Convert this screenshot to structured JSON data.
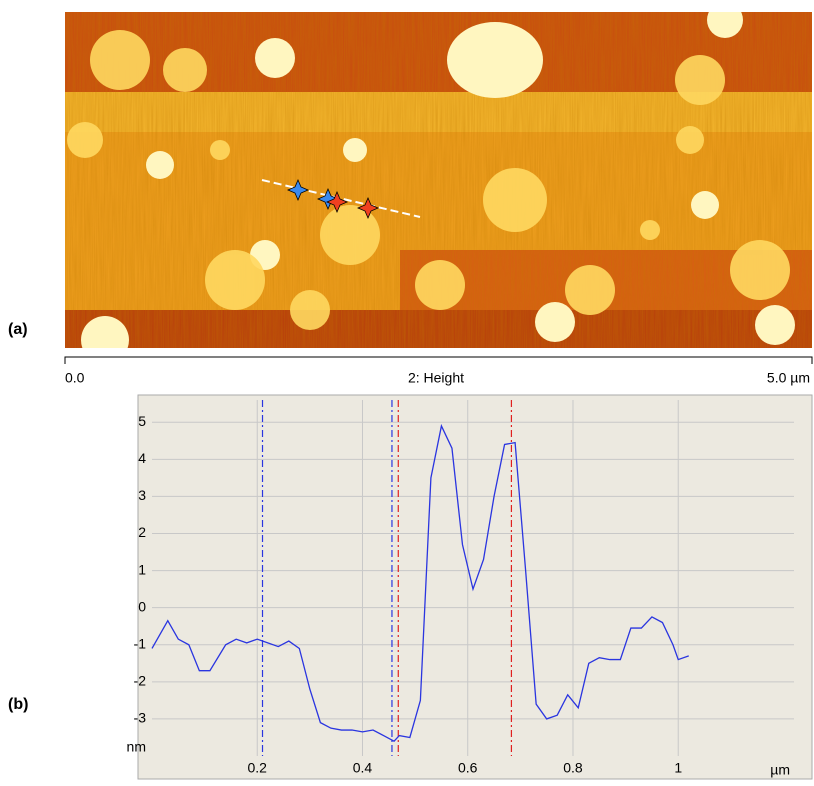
{
  "panel_a_label": "(a)",
  "panel_b_label": "(b)",
  "scale_bar": {
    "start": "0.0",
    "title": "2: Height",
    "end": "5.0 µm"
  },
  "chart_data": {
    "type": "line",
    "xlabel": "µm",
    "ylabel": "nm",
    "x": [
      0,
      0.03,
      0.05,
      0.07,
      0.09,
      0.11,
      0.14,
      0.16,
      0.18,
      0.2,
      0.22,
      0.24,
      0.26,
      0.28,
      0.3,
      0.32,
      0.34,
      0.36,
      0.38,
      0.4,
      0.42,
      0.44,
      0.46,
      0.47,
      0.49,
      0.51,
      0.53,
      0.55,
      0.57,
      0.59,
      0.61,
      0.63,
      0.65,
      0.67,
      0.69,
      0.71,
      0.73,
      0.75,
      0.77,
      0.79,
      0.81,
      0.83,
      0.85,
      0.87,
      0.89,
      0.91,
      0.93,
      0.95,
      0.97,
      0.99,
      1.0,
      1.02
    ],
    "series": [
      {
        "color": "#2a35e0",
        "values": [
          -1.1,
          -0.35,
          -0.85,
          -1.0,
          -1.7,
          -1.7,
          -1.0,
          -0.85,
          -0.95,
          -0.85,
          -0.95,
          -1.05,
          -0.9,
          -1.1,
          -2.2,
          -3.1,
          -3.25,
          -3.3,
          -3.3,
          -3.35,
          -3.3,
          -3.45,
          -3.6,
          -3.45,
          -3.5,
          -2.5,
          3.5,
          4.9,
          4.3,
          1.7,
          0.5,
          1.3,
          3.0,
          4.4,
          4.45,
          1.0,
          -2.6,
          -3.0,
          -2.9,
          -2.35,
          -2.7,
          -1.5,
          -1.35,
          -1.4,
          -1.4,
          -0.55,
          -0.55,
          -0.25,
          -0.4,
          -1.0,
          -1.4,
          -1.3
        ]
      }
    ],
    "vlines": [
      {
        "x": 0.21,
        "color": "#2a35e0"
      },
      {
        "x": 0.456,
        "color": "#2a35e0"
      },
      {
        "x": 0.468,
        "color": "#e02020"
      },
      {
        "x": 0.683,
        "color": "#e02020"
      }
    ],
    "xlim": [
      0,
      1.22
    ],
    "ylim": [
      -4,
      5.6
    ],
    "xticks": [
      0.2,
      0.4,
      0.6,
      0.8,
      1
    ],
    "yticks": [
      -3,
      -2,
      -1,
      0,
      1,
      2,
      3,
      4,
      5
    ],
    "grid": true
  }
}
